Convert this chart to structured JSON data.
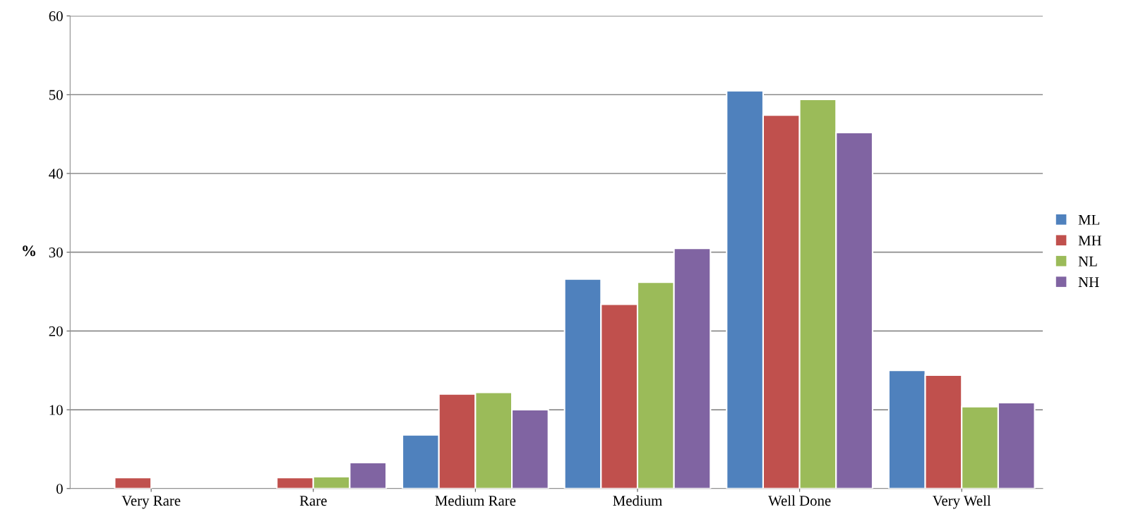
{
  "chart_data": {
    "type": "bar",
    "ylabel": "%",
    "categories": [
      "Very Rare",
      "Rare",
      "Medium Rare",
      "Medium",
      "Well Done",
      "Very Well"
    ],
    "series": [
      {
        "name": "ML",
        "color": "#4f81bd",
        "values": [
          null,
          null,
          6.8,
          26.6,
          50.5,
          15.0
        ]
      },
      {
        "name": "MH",
        "color": "#c0504d",
        "values": [
          1.4,
          1.4,
          12.0,
          23.4,
          47.4,
          14.4
        ]
      },
      {
        "name": "NL",
        "color": "#9bbb59",
        "values": [
          null,
          1.5,
          12.2,
          26.2,
          49.4,
          10.4
        ]
      },
      {
        "name": "NH",
        "color": "#8064a2",
        "values": [
          null,
          3.3,
          10.0,
          30.5,
          45.2,
          10.9
        ]
      }
    ],
    "ylim": [
      0,
      60
    ],
    "yticks": [
      0,
      10,
      20,
      30,
      40,
      50,
      60
    ],
    "grid": "y",
    "legend": "right"
  }
}
